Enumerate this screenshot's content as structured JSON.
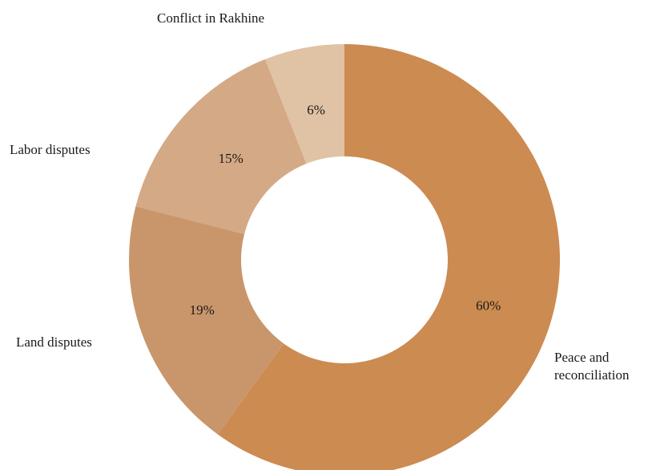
{
  "chart_data": {
    "type": "pie",
    "title": "",
    "categories": [
      "Peace and reconciliation",
      "Land disputes",
      "Labor disputes",
      "Conflict in Rakhine"
    ],
    "values": [
      60,
      19,
      15,
      6
    ],
    "value_labels": [
      "60%",
      "19%",
      "15%",
      "6%"
    ],
    "colors": [
      "#cc8b51",
      "#c9966b",
      "#d4a985",
      "#e0c2a5"
    ],
    "donut": true,
    "legend": "none"
  },
  "labels": {
    "peace_line1": "Peace and",
    "peace_line2": "reconciliation",
    "land": "Land disputes",
    "labor": "Labor disputes",
    "rakhine": "Conflict in Rakhine"
  }
}
